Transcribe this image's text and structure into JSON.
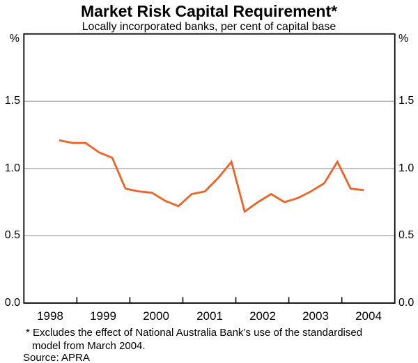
{
  "title": "Market Risk Capital Requirement*",
  "subtitle": "Locally incorporated banks, per cent of capital base",
  "unit_left": "%",
  "unit_right": "%",
  "footnote_line1": "* Excludes the effect of National Australia Bank’s use of the standardised",
  "footnote_line2": "model from March 2004.",
  "source": "Source: APRA",
  "colors": {
    "line": "#ED6325",
    "grid": "#8C8C8C",
    "axis": "#000000",
    "text": "#000000",
    "background": "#FFFFFF"
  },
  "chart_data": {
    "type": "line",
    "title": "Market Risk Capital Requirement*",
    "subtitle": "Locally incorporated banks, per cent of capital base",
    "ylabel": "%",
    "grid": "horizontal-only",
    "legend": "none",
    "x_axis": {
      "range_years": [
        1998,
        2005
      ],
      "tick_years": [
        1999,
        2000,
        2001,
        2002,
        2003,
        2004
      ],
      "year_labels": [
        "1998",
        "1999",
        "2000",
        "2001",
        "2002",
        "2003",
        "2004"
      ]
    },
    "y_axis": {
      "range": [
        0.0,
        2.0
      ],
      "gridline_values": [
        0.5,
        1.0,
        1.5
      ],
      "tick_values": [
        1.5,
        1.0,
        0.5,
        0.0
      ],
      "tick_labels": [
        "1.5",
        "1.0",
        "0.5",
        "0.0"
      ]
    },
    "series": [
      {
        "name": "Market risk capital requirement (per cent of capital base)",
        "frequency": "quarterly",
        "x_start_year": 1998.6667,
        "x_step_years": 0.25,
        "periods": [
          "Sep 1998",
          "Dec 1998",
          "Mar 1999",
          "Jun 1999",
          "Sep 1999",
          "Dec 1999",
          "Mar 2000",
          "Jun 2000",
          "Sep 2000",
          "Dec 2000",
          "Mar 2001",
          "Jun 2001",
          "Sep 2001",
          "Dec 2001",
          "Mar 2002",
          "Jun 2002",
          "Sep 2002",
          "Dec 2002",
          "Mar 2003",
          "Jun 2003",
          "Sep 2003",
          "Dec 2003",
          "Mar 2004",
          "Jun 2004"
        ],
        "values": [
          1.21,
          1.19,
          1.19,
          1.12,
          1.08,
          0.85,
          0.83,
          0.82,
          0.76,
          0.72,
          0.81,
          0.83,
          0.93,
          1.05,
          0.68,
          0.75,
          0.81,
          0.75,
          0.78,
          0.83,
          0.89,
          1.05,
          0.85,
          0.84
        ]
      }
    ]
  }
}
